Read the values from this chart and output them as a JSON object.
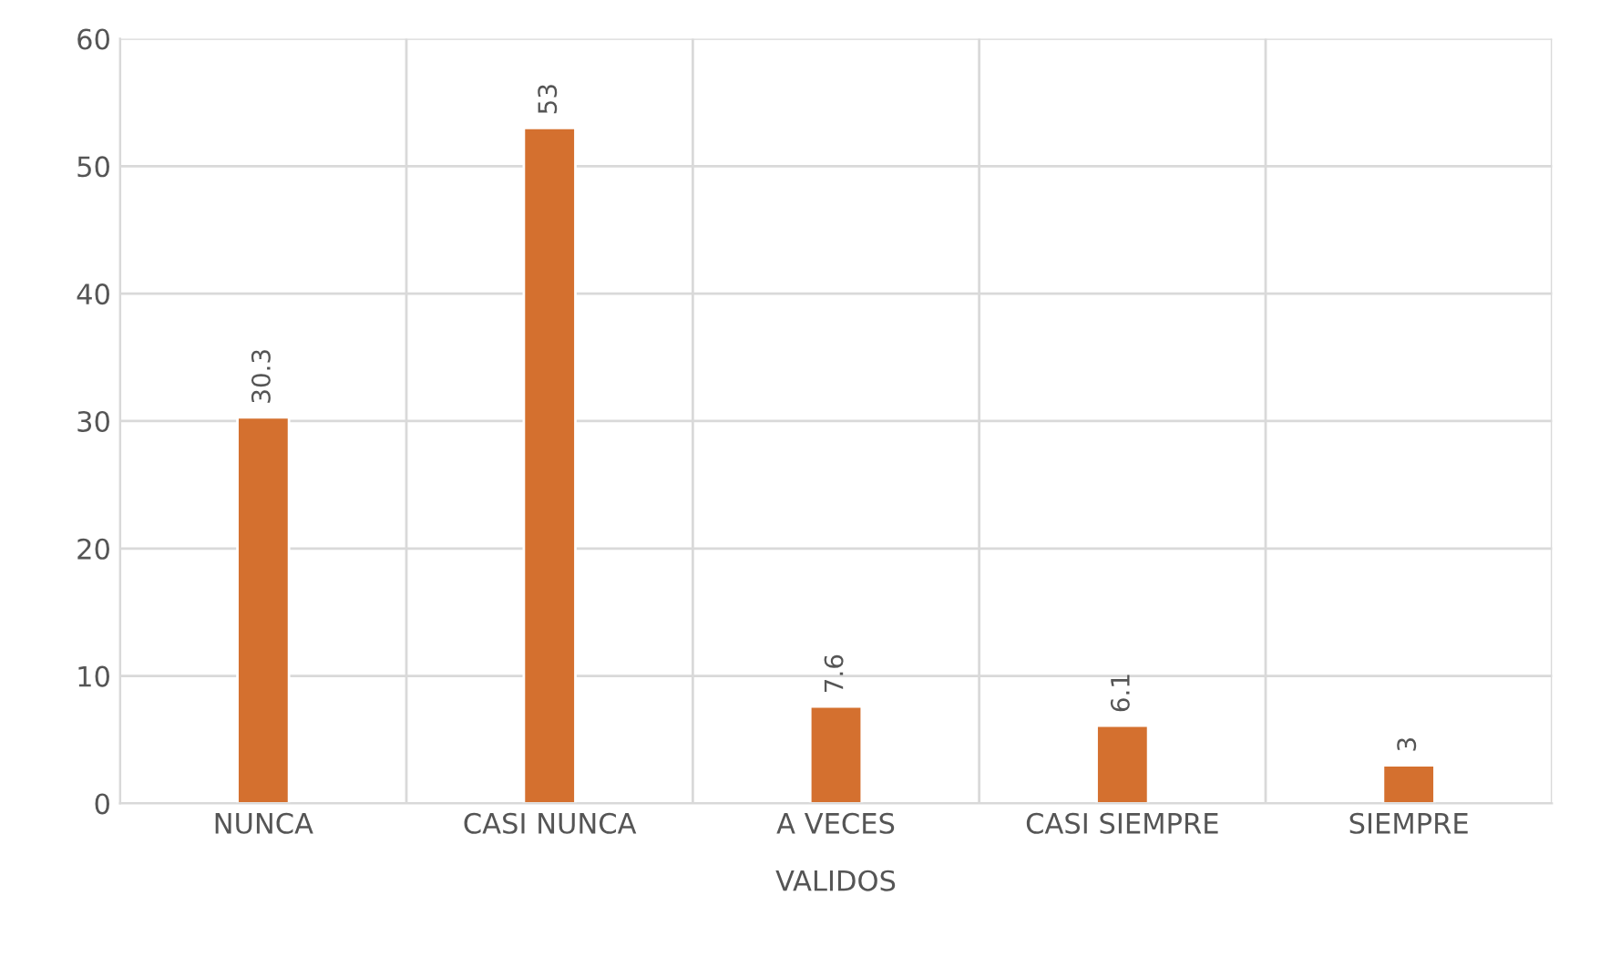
{
  "chart_data": {
    "type": "bar",
    "categories": [
      "NUNCA",
      "CASI NUNCA",
      "A VECES",
      "CASI SIEMPRE",
      "SIEMPRE"
    ],
    "values": [
      30.3,
      53,
      7.6,
      6.1,
      3
    ],
    "color": "#d4702f",
    "xlabel": "VALIDOS",
    "ylim": [
      0,
      60
    ],
    "yticks": [
      0,
      10,
      20,
      30,
      40,
      50,
      60
    ],
    "grid": true,
    "data_labels": true
  }
}
